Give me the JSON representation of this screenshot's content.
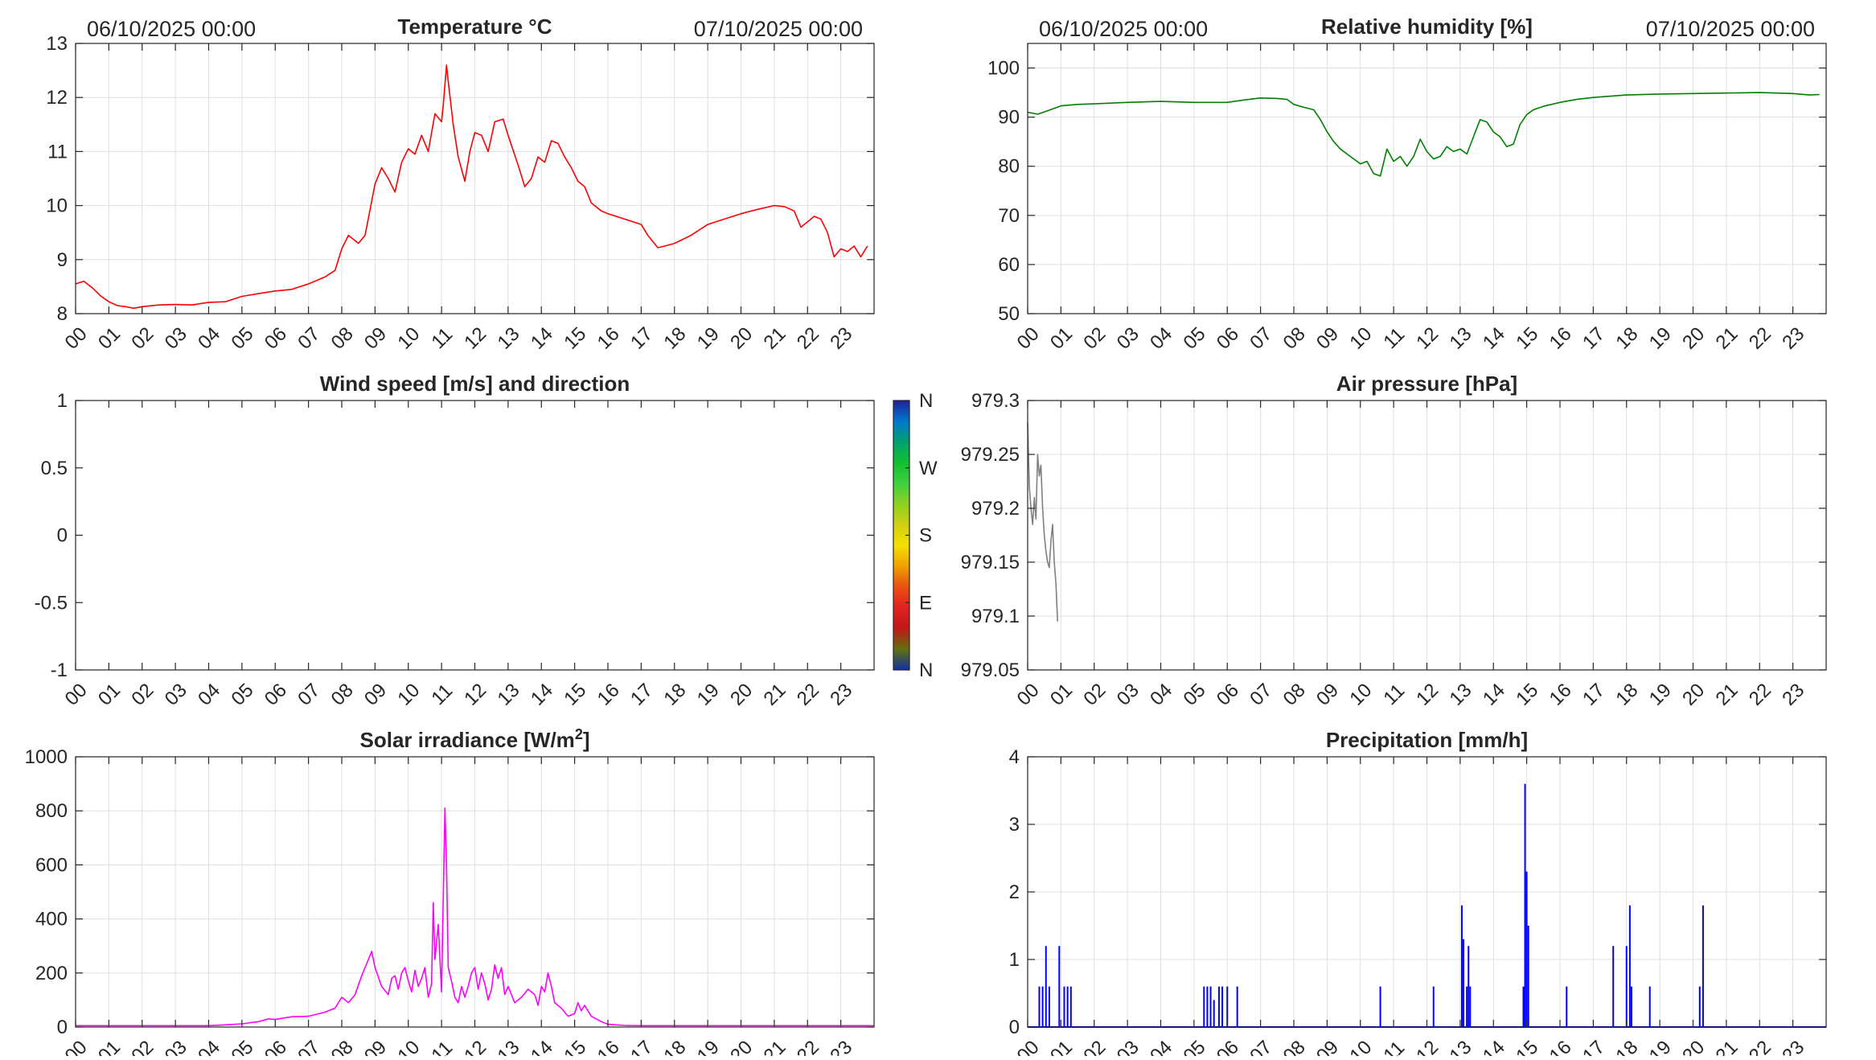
{
  "chart_data": [
    {
      "id": "temperature",
      "type": "line",
      "title": "Temperature °C",
      "date_left": "06/10/2025 00:00",
      "date_right": "07/10/2025 00:00",
      "xlim": [
        0,
        24
      ],
      "ylim": [
        8,
        13
      ],
      "yticks": [
        8,
        9,
        10,
        11,
        12,
        13
      ],
      "ytick_labels": [
        "8",
        "9",
        "10",
        "11",
        "12",
        "13"
      ],
      "grid": true,
      "color": "#ff0000",
      "x": [
        0,
        0.25,
        0.5,
        0.75,
        1,
        1.25,
        1.5,
        1.75,
        2,
        2.5,
        3,
        3.5,
        4,
        4.5,
        5,
        5.5,
        6,
        6.5,
        7,
        7.5,
        7.8,
        8,
        8.2,
        8.5,
        8.7,
        9,
        9.2,
        9.4,
        9.6,
        9.8,
        10,
        10.2,
        10.4,
        10.6,
        10.8,
        11,
        11.05,
        11.15,
        11.2,
        11.35,
        11.5,
        11.7,
        11.85,
        12,
        12.2,
        12.4,
        12.6,
        12.85,
        13,
        13.3,
        13.5,
        13.7,
        13.9,
        14.1,
        14.3,
        14.5,
        14.7,
        14.9,
        15.1,
        15.3,
        15.5,
        15.8,
        16,
        16.5,
        17,
        17.2,
        17.5,
        17.7,
        18,
        18.5,
        19,
        19.5,
        20,
        20.5,
        21,
        21.3,
        21.6,
        21.8,
        22,
        22.2,
        22.4,
        22.6,
        22.8,
        23,
        23.2,
        23.4,
        23.6,
        23.8
      ],
      "y": [
        8.55,
        8.6,
        8.48,
        8.33,
        8.22,
        8.15,
        8.13,
        8.1,
        8.13,
        8.16,
        8.17,
        8.16,
        8.21,
        8.22,
        8.32,
        8.37,
        8.42,
        8.45,
        8.55,
        8.68,
        8.8,
        9.2,
        9.45,
        9.3,
        9.45,
        10.4,
        10.7,
        10.5,
        10.25,
        10.8,
        11.05,
        10.95,
        11.3,
        11.0,
        11.7,
        11.55,
        11.85,
        12.6,
        12.3,
        11.5,
        10.9,
        10.45,
        11.0,
        11.35,
        11.3,
        11.0,
        11.55,
        11.6,
        11.3,
        10.75,
        10.35,
        10.5,
        10.9,
        10.8,
        11.2,
        11.15,
        10.9,
        10.7,
        10.45,
        10.35,
        10.05,
        9.9,
        9.85,
        9.75,
        9.65,
        9.45,
        9.22,
        9.25,
        9.3,
        9.45,
        9.65,
        9.75,
        9.85,
        9.93,
        10.0,
        9.98,
        9.9,
        9.6,
        9.7,
        9.8,
        9.75,
        9.5,
        9.05,
        9.2,
        9.15,
        9.25,
        9.05,
        9.25
      ]
    },
    {
      "id": "humidity",
      "type": "line",
      "title": "Relative humidity [%]",
      "date_left": "06/10/2025 00:00",
      "date_right": "07/10/2025 00:00",
      "xlim": [
        0,
        24
      ],
      "ylim": [
        50,
        105
      ],
      "yticks": [
        50,
        60,
        70,
        80,
        90,
        100
      ],
      "ytick_labels": [
        "50",
        "60",
        "70",
        "80",
        "90",
        "100"
      ],
      "grid": true,
      "color": "#008000",
      "x": [
        0,
        0.3,
        0.6,
        1,
        1.5,
        2,
        3,
        4,
        5,
        6,
        6.5,
        7,
        7.5,
        7.8,
        8,
        8.3,
        8.6,
        8.8,
        9,
        9.2,
        9.4,
        9.6,
        9.8,
        10,
        10.2,
        10.4,
        10.6,
        10.8,
        11,
        11.2,
        11.4,
        11.6,
        11.8,
        12,
        12.2,
        12.4,
        12.6,
        12.8,
        13,
        13.2,
        13.4,
        13.6,
        13.8,
        14,
        14.2,
        14.4,
        14.6,
        14.8,
        15,
        15.2,
        15.5,
        16,
        16.5,
        17,
        18,
        19,
        20,
        21,
        22,
        23,
        23.5,
        23.8
      ],
      "y": [
        91,
        90.6,
        91.3,
        92.3,
        92.6,
        92.7,
        93.0,
        93.2,
        93.0,
        93.0,
        93.5,
        93.9,
        93.8,
        93.6,
        92.6,
        92.0,
        91.5,
        89.5,
        87,
        85,
        83.5,
        82.5,
        81.5,
        80.5,
        81,
        78.5,
        78,
        83.5,
        81,
        82,
        80,
        82,
        85.5,
        83,
        81.5,
        82,
        84,
        83,
        83.5,
        82.5,
        86,
        89.5,
        89,
        87,
        86,
        84,
        84.5,
        88.5,
        90.5,
        91.5,
        92.2,
        93,
        93.6,
        94,
        94.5,
        94.7,
        94.8,
        94.9,
        95.0,
        94.8,
        94.5,
        94.6
      ]
    },
    {
      "id": "wind",
      "type": "scatter",
      "title": "Wind speed [m/s] and direction",
      "xlim": [
        0,
        24
      ],
      "ylim": [
        -1,
        1
      ],
      "yticks": [
        -1,
        -0.5,
        0,
        0.5,
        1
      ],
      "ytick_labels": [
        "-1",
        "-0.5",
        "0",
        "0.5",
        "1"
      ],
      "grid": false,
      "x": [],
      "y": [],
      "colorbar": {
        "labels": [
          "N",
          "W",
          "S",
          "E",
          "N"
        ],
        "colors": [
          "#20209a",
          "#0077cc",
          "#00a070",
          "#10c030",
          "#40d040",
          "#90d020",
          "#d0d010",
          "#f5e000",
          "#f0a000",
          "#e85010",
          "#e02020",
          "#c01818",
          "#607010",
          "#1030a0"
        ]
      }
    },
    {
      "id": "pressure",
      "type": "line",
      "title": "Air pressure [hPa]",
      "xlim": [
        0,
        24
      ],
      "ylim": [
        979.05,
        979.3
      ],
      "yticks": [
        979.05,
        979.1,
        979.15,
        979.2,
        979.25,
        979.3
      ],
      "ytick_labels": [
        "979.05",
        "979.1",
        "979.15",
        "979.2",
        "979.25",
        "979.3"
      ],
      "grid": true,
      "color": "#808080",
      "x": [
        0,
        0.05,
        0.1,
        0.15,
        0.2,
        0.25,
        0.3,
        0.35,
        0.4,
        0.45,
        0.5,
        0.55,
        0.6,
        0.65,
        0.7,
        0.75,
        0.8,
        0.85,
        0.9
      ],
      "y": [
        979.28,
        979.22,
        979.2,
        979.185,
        979.21,
        979.19,
        979.25,
        979.23,
        979.24,
        979.2,
        979.175,
        979.16,
        979.15,
        979.145,
        979.17,
        979.185,
        979.15,
        979.13,
        979.095
      ]
    },
    {
      "id": "solar",
      "type": "line",
      "title": "Solar irradiance [W/m",
      "title_sup": "2",
      "title_end": "]",
      "xlim": [
        0,
        24
      ],
      "ylim": [
        0,
        1000
      ],
      "yticks": [
        0,
        200,
        400,
        600,
        800,
        1000
      ],
      "ytick_labels": [
        "0",
        "200",
        "400",
        "600",
        "800",
        "1000"
      ],
      "grid": true,
      "color": "#ff00ff",
      "x": [
        0,
        4,
        4.5,
        5,
        5.5,
        5.8,
        6,
        6.5,
        7,
        7.5,
        7.8,
        8,
        8.2,
        8.4,
        8.6,
        8.8,
        8.9,
        9,
        9.2,
        9.4,
        9.5,
        9.6,
        9.7,
        9.8,
        9.9,
        10,
        10.1,
        10.2,
        10.3,
        10.4,
        10.5,
        10.6,
        10.7,
        10.75,
        10.8,
        10.9,
        11,
        11.1,
        11.15,
        11.2,
        11.3,
        11.4,
        11.5,
        11.6,
        11.7,
        11.8,
        11.9,
        12,
        12.1,
        12.2,
        12.3,
        12.4,
        12.5,
        12.6,
        12.7,
        12.8,
        12.9,
        13,
        13.2,
        13.4,
        13.6,
        13.8,
        13.9,
        14,
        14.1,
        14.2,
        14.3,
        14.4,
        14.6,
        14.8,
        15,
        15.1,
        15.2,
        15.3,
        15.5,
        15.8,
        16,
        16.5,
        17,
        24
      ],
      "y": [
        5,
        5,
        8,
        12,
        20,
        30,
        28,
        38,
        40,
        55,
        70,
        110,
        90,
        120,
        190,
        250,
        280,
        220,
        150,
        120,
        180,
        190,
        140,
        200,
        220,
        170,
        130,
        210,
        150,
        180,
        220,
        110,
        160,
        460,
        250,
        380,
        130,
        810,
        600,
        220,
        170,
        110,
        90,
        150,
        110,
        150,
        200,
        220,
        140,
        200,
        160,
        100,
        140,
        230,
        180,
        220,
        120,
        150,
        90,
        110,
        140,
        120,
        80,
        150,
        130,
        200,
        150,
        90,
        70,
        40,
        50,
        90,
        60,
        80,
        40,
        20,
        10,
        6,
        5,
        5
      ]
    },
    {
      "id": "precipitation",
      "type": "bar",
      "title": "Precipitation [mm/h]",
      "xlim": [
        0,
        24
      ],
      "ylim": [
        0,
        4
      ],
      "yticks": [
        0,
        1,
        2,
        3,
        4
      ],
      "ytick_labels": [
        "0",
        "1",
        "2",
        "3",
        "4"
      ],
      "grid": true,
      "color": "#0000ff",
      "x": [
        0.35,
        0.45,
        0.55,
        0.65,
        0.95,
        1.1,
        1.2,
        1.3,
        5.3,
        5.4,
        5.5,
        5.6,
        5.75,
        5.85,
        6.0,
        6.3,
        10.6,
        12.2,
        13.05,
        13.1,
        13.2,
        13.25,
        13.3,
        14.9,
        14.95,
        15.0,
        15.05,
        16.2,
        17.6,
        18.0,
        18.1,
        18.15,
        18.7,
        20.2,
        20.3
      ],
      "y": [
        0.6,
        0.6,
        1.2,
        0.6,
        1.2,
        0.6,
        0.6,
        0.6,
        0.6,
        0.6,
        0.6,
        0.4,
        0.6,
        0.6,
        0.6,
        0.6,
        0.6,
        0.6,
        1.8,
        1.3,
        0.6,
        1.2,
        0.6,
        0.6,
        3.6,
        2.3,
        1.5,
        0.6,
        1.2,
        1.2,
        1.8,
        0.6,
        0.6,
        0.6,
        1.8
      ]
    }
  ],
  "hour_labels": [
    "00",
    "01",
    "02",
    "03",
    "04",
    "05",
    "06",
    "07",
    "08",
    "09",
    "10",
    "11",
    "12",
    "13",
    "14",
    "15",
    "16",
    "17",
    "18",
    "19",
    "20",
    "21",
    "22",
    "23"
  ]
}
